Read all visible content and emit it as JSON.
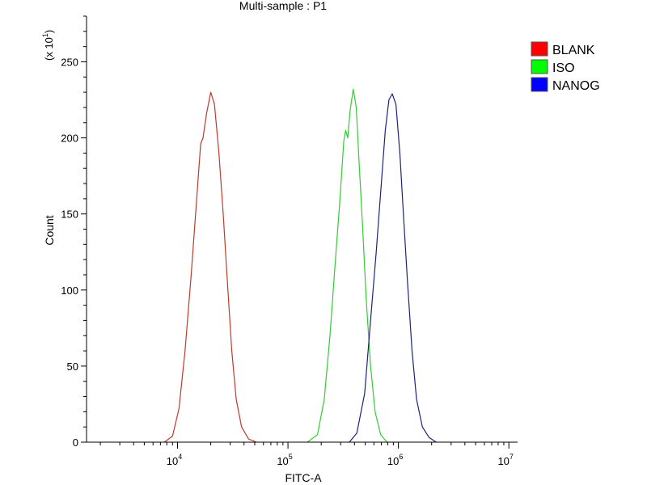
{
  "chart_data": {
    "type": "line",
    "title": "Multi-sample : P1",
    "xlabel": "FITC-A",
    "ylabel": "Count",
    "y_multiplier_label": "(x 10",
    "y_multiplier_exp": "1",
    "y_multiplier_close": ")",
    "x_scale": "log",
    "xlim": [
      1500,
      12000000
    ],
    "ylim": [
      0,
      280
    ],
    "x_ticks": [
      {
        "value": 10000,
        "base": "10",
        "exp": "4"
      },
      {
        "value": 100000,
        "base": "10",
        "exp": "5"
      },
      {
        "value": 1000000,
        "base": "10",
        "exp": "6"
      },
      {
        "value": 10000000,
        "base": "10",
        "exp": "7"
      }
    ],
    "y_ticks": [
      {
        "value": 0,
        "label": "0"
      },
      {
        "value": 50,
        "label": "50"
      },
      {
        "value": 100,
        "label": "100"
      },
      {
        "value": 150,
        "label": "150"
      },
      {
        "value": 200,
        "label": "200"
      },
      {
        "value": 250,
        "label": "250"
      }
    ],
    "grid": false,
    "legend_position": "right",
    "series": [
      {
        "name": "BLANK",
        "color": "#c0392b",
        "legend_color": "#ff0000",
        "points": [
          [
            7600,
            0
          ],
          [
            9000,
            4
          ],
          [
            10300,
            22
          ],
          [
            11700,
            60
          ],
          [
            13300,
            110
          ],
          [
            14900,
            160
          ],
          [
            16200,
            196
          ],
          [
            17000,
            200
          ],
          [
            18300,
            216
          ],
          [
            20000,
            230
          ],
          [
            21600,
            222
          ],
          [
            23700,
            190
          ],
          [
            25900,
            150
          ],
          [
            28300,
            105
          ],
          [
            31000,
            60
          ],
          [
            34000,
            28
          ],
          [
            38000,
            10
          ],
          [
            44000,
            2
          ],
          [
            52000,
            0
          ]
        ]
      },
      {
        "name": "ISO",
        "color": "#33cc33",
        "legend_color": "#00ff00",
        "points": [
          [
            150000,
            0
          ],
          [
            185000,
            5
          ],
          [
            213000,
            28
          ],
          [
            240000,
            70
          ],
          [
            268000,
            118
          ],
          [
            296000,
            160
          ],
          [
            320000,
            198
          ],
          [
            333000,
            205
          ],
          [
            348000,
            200
          ],
          [
            365000,
            218
          ],
          [
            390000,
            232
          ],
          [
            415000,
            220
          ],
          [
            440000,
            185
          ],
          [
            475000,
            140
          ],
          [
            510000,
            95
          ],
          [
            560000,
            50
          ],
          [
            615000,
            20
          ],
          [
            690000,
            5
          ],
          [
            790000,
            0
          ]
        ]
      },
      {
        "name": "NANOG",
        "color": "#1a237e",
        "legend_color": "#0000ff",
        "points": [
          [
            360000,
            0
          ],
          [
            420000,
            6
          ],
          [
            495000,
            32
          ],
          [
            560000,
            80
          ],
          [
            630000,
            125
          ],
          [
            700000,
            170
          ],
          [
            760000,
            205
          ],
          [
            820000,
            225
          ],
          [
            880000,
            229
          ],
          [
            950000,
            222
          ],
          [
            1030000,
            190
          ],
          [
            1110000,
            150
          ],
          [
            1210000,
            105
          ],
          [
            1330000,
            60
          ],
          [
            1460000,
            28
          ],
          [
            1650000,
            10
          ],
          [
            1900000,
            3
          ],
          [
            2200000,
            0
          ]
        ]
      }
    ]
  }
}
